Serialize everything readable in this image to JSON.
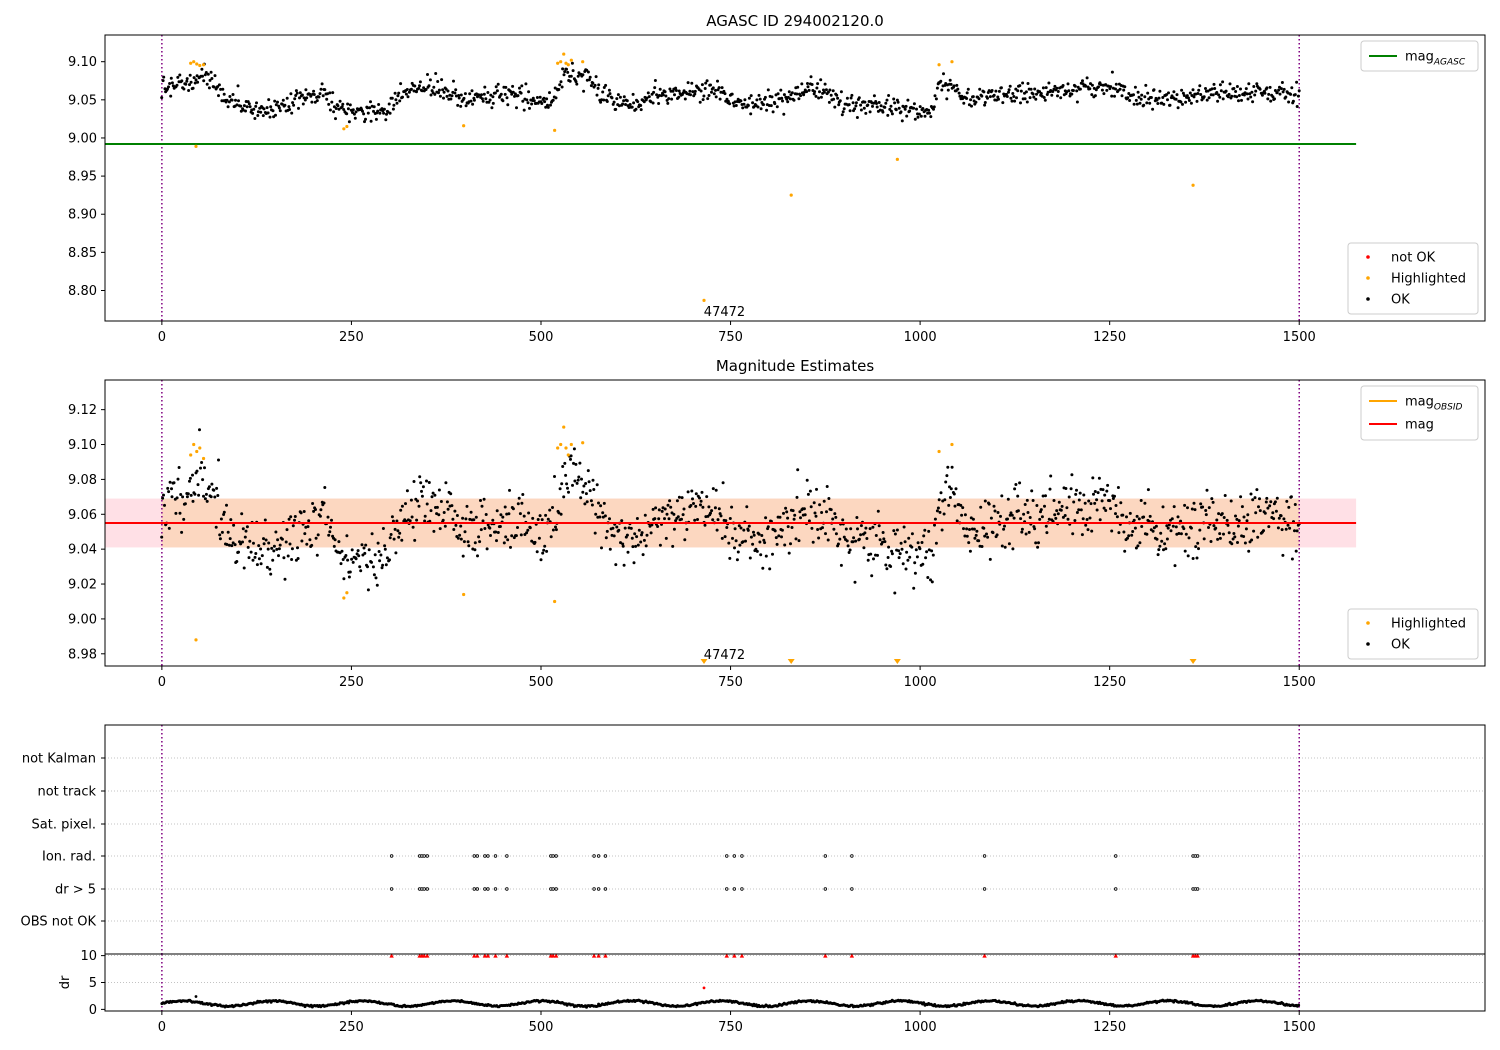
{
  "chart_data": [
    {
      "type": "scatter",
      "title": "AGASC ID 294002120.0",
      "xlabel": "",
      "ylabel": "",
      "xlim": [
        -75,
        1745
      ],
      "ylim": [
        8.76,
        9.135
      ],
      "xticks": [
        0,
        250,
        500,
        750,
        1000,
        1250,
        1500
      ],
      "yticks": [
        8.8,
        8.85,
        8.9,
        8.95,
        9.0,
        9.05,
        9.1
      ],
      "vlines": [
        0,
        1500
      ],
      "hline": {
        "name": "mag_AGASC",
        "value": 8.992,
        "x_range": [
          -75,
          1575
        ],
        "color": "#008000"
      },
      "legend_lines": [
        {
          "name": "mag",
          "sub": "AGASC",
          "color": "#008000"
        }
      ],
      "legend_points": [
        {
          "name": "not OK",
          "color": "#ff0000"
        },
        {
          "name": "Highlighted",
          "color": "#ffa500"
        },
        {
          "name": "OK",
          "color": "#000000"
        }
      ],
      "annotations": [
        {
          "text": "47472",
          "x": 720,
          "y": 8.772
        }
      ],
      "series": [
        {
          "name": "OK",
          "color": "#000000",
          "trend": [
            [
              0,
              9.065
            ],
            [
              30,
              9.072
            ],
            [
              55,
              9.08
            ],
            [
              70,
              9.072
            ],
            [
              85,
              9.05
            ],
            [
              110,
              9.04
            ],
            [
              140,
              9.038
            ],
            [
              165,
              9.045
            ],
            [
              190,
              9.05
            ],
            [
              215,
              9.06
            ],
            [
              235,
              9.035
            ],
            [
              260,
              9.035
            ],
            [
              295,
              9.035
            ],
            [
              305,
              9.05
            ],
            [
              340,
              9.068
            ],
            [
              375,
              9.062
            ],
            [
              395,
              9.05
            ],
            [
              430,
              9.055
            ],
            [
              470,
              9.055
            ],
            [
              505,
              9.045
            ],
            [
              520,
              9.06
            ],
            [
              535,
              9.085
            ],
            [
              560,
              9.08
            ],
            [
              590,
              9.05
            ],
            [
              620,
              9.045
            ],
            [
              660,
              9.058
            ],
            [
              700,
              9.065
            ],
            [
              740,
              9.06
            ],
            [
              760,
              9.045
            ],
            [
              790,
              9.045
            ],
            [
              820,
              9.05
            ],
            [
              850,
              9.065
            ],
            [
              875,
              9.06
            ],
            [
              900,
              9.045
            ],
            [
              930,
              9.045
            ],
            [
              960,
              9.04
            ],
            [
              990,
              9.035
            ],
            [
              1015,
              9.035
            ],
            [
              1025,
              9.07
            ],
            [
              1045,
              9.07
            ],
            [
              1060,
              9.05
            ],
            [
              1100,
              9.055
            ],
            [
              1150,
              9.06
            ],
            [
              1200,
              9.065
            ],
            [
              1250,
              9.068
            ],
            [
              1280,
              9.055
            ],
            [
              1320,
              9.05
            ],
            [
              1360,
              9.055
            ],
            [
              1400,
              9.058
            ],
            [
              1450,
              9.06
            ],
            [
              1500,
              9.055
            ]
          ],
          "noise": 0.0065,
          "step": 1.25,
          "seed": 7
        },
        {
          "name": "Highlighted",
          "color": "#ffa500",
          "points": [
            [
              38,
              9.098
            ],
            [
              42,
              9.1
            ],
            [
              46,
              9.097
            ],
            [
              50,
              9.095
            ],
            [
              55,
              9.096
            ],
            [
              45,
              8.989
            ],
            [
              240,
              9.012
            ],
            [
              244,
              9.015
            ],
            [
              398,
              9.016
            ],
            [
              518,
              9.01
            ],
            [
              522,
              9.098
            ],
            [
              526,
              9.1
            ],
            [
              530,
              9.11
            ],
            [
              533,
              9.098
            ],
            [
              536,
              9.096
            ],
            [
              540,
              9.102
            ],
            [
              555,
              9.1
            ],
            [
              715,
              8.787
            ],
            [
              830,
              8.925
            ],
            [
              970,
              8.972
            ],
            [
              1025,
              9.096
            ],
            [
              1042,
              9.1
            ],
            [
              1360,
              8.938
            ]
          ]
        }
      ]
    },
    {
      "type": "scatter",
      "title": "Magnitude Estimates",
      "xlabel": "",
      "ylabel": "",
      "xlim": [
        -75,
        1745
      ],
      "ylim": [
        8.973,
        9.137
      ],
      "xticks": [
        0,
        250,
        500,
        750,
        1000,
        1250,
        1500
      ],
      "yticks": [
        8.98,
        9.0,
        9.02,
        9.04,
        9.06,
        9.08,
        9.1,
        9.12
      ],
      "vlines": [
        0,
        1500
      ],
      "band_outer": {
        "y": [
          9.041,
          9.069
        ],
        "x_range": [
          -75,
          1575
        ],
        "color": "#ffe0e6"
      },
      "band_inner": {
        "y": [
          9.041,
          9.069
        ],
        "x_range": [
          0,
          1500
        ],
        "color": "#fcd7c0"
      },
      "mag_line": {
        "name": "mag",
        "value": 9.055,
        "x_range": [
          -75,
          1575
        ],
        "color": "#ff0000"
      },
      "obsid_line": {
        "name": "mag_OBSID",
        "value": 9.055,
        "x_range": [
          0,
          1500
        ],
        "color": "#ffa500"
      },
      "legend_lines": [
        {
          "name": "mag",
          "sub": "OBSID",
          "color": "#ffa500"
        },
        {
          "name": "mag",
          "sub": "",
          "color": "#ff0000"
        }
      ],
      "legend_points": [
        {
          "name": "Highlighted",
          "color": "#ffa500"
        },
        {
          "name": "OK",
          "color": "#000000"
        }
      ],
      "annotations": [
        {
          "text": "47472",
          "x": 720,
          "y": 8.976
        }
      ],
      "offscale_markers": [
        715,
        830,
        970,
        1360
      ],
      "series": [
        {
          "name": "OK",
          "color": "#000000",
          "trend": [
            [
              0,
              9.065
            ],
            [
              30,
              9.072
            ],
            [
              55,
              9.08
            ],
            [
              70,
              9.072
            ],
            [
              85,
              9.05
            ],
            [
              110,
              9.04
            ],
            [
              140,
              9.038
            ],
            [
              165,
              9.045
            ],
            [
              190,
              9.05
            ],
            [
              215,
              9.06
            ],
            [
              235,
              9.035
            ],
            [
              260,
              9.035
            ],
            [
              295,
              9.035
            ],
            [
              305,
              9.05
            ],
            [
              340,
              9.068
            ],
            [
              375,
              9.062
            ],
            [
              395,
              9.05
            ],
            [
              430,
              9.055
            ],
            [
              470,
              9.055
            ],
            [
              505,
              9.045
            ],
            [
              520,
              9.06
            ],
            [
              535,
              9.085
            ],
            [
              560,
              9.08
            ],
            [
              590,
              9.05
            ],
            [
              620,
              9.045
            ],
            [
              660,
              9.058
            ],
            [
              700,
              9.065
            ],
            [
              740,
              9.06
            ],
            [
              760,
              9.045
            ],
            [
              790,
              9.045
            ],
            [
              820,
              9.05
            ],
            [
              850,
              9.065
            ],
            [
              875,
              9.06
            ],
            [
              900,
              9.045
            ],
            [
              930,
              9.045
            ],
            [
              960,
              9.04
            ],
            [
              990,
              9.035
            ],
            [
              1015,
              9.035
            ],
            [
              1025,
              9.07
            ],
            [
              1045,
              9.07
            ],
            [
              1060,
              9.05
            ],
            [
              1100,
              9.055
            ],
            [
              1150,
              9.06
            ],
            [
              1200,
              9.065
            ],
            [
              1250,
              9.068
            ],
            [
              1280,
              9.055
            ],
            [
              1320,
              9.05
            ],
            [
              1360,
              9.055
            ],
            [
              1400,
              9.058
            ],
            [
              1450,
              9.06
            ],
            [
              1500,
              9.055
            ]
          ],
          "noise": 0.0085,
          "step": 1.25,
          "seed": 11
        },
        {
          "name": "Highlighted",
          "color": "#ffa500",
          "points": [
            [
              38,
              9.094
            ],
            [
              42,
              9.1
            ],
            [
              46,
              9.096
            ],
            [
              50,
              9.098
            ],
            [
              55,
              9.092
            ],
            [
              45,
              8.988
            ],
            [
              240,
              9.012
            ],
            [
              244,
              9.015
            ],
            [
              398,
              9.014
            ],
            [
              518,
              9.01
            ],
            [
              522,
              9.098
            ],
            [
              526,
              9.1
            ],
            [
              530,
              9.11
            ],
            [
              533,
              9.098
            ],
            [
              536,
              9.094
            ],
            [
              540,
              9.1
            ],
            [
              555,
              9.101
            ],
            [
              1025,
              9.096
            ],
            [
              1042,
              9.1
            ]
          ]
        }
      ]
    },
    {
      "type": "scatter",
      "title": "",
      "xlabel": "",
      "ylabel": "",
      "xlim": [
        -75,
        1745
      ],
      "xticks": [
        0,
        250,
        500,
        750,
        1000,
        1250,
        1500
      ],
      "vlines": [
        0,
        1500
      ],
      "flag_rows": [
        "not Kalman",
        "not track",
        "Sat. pixel.",
        "Ion. rad.",
        "dr > 5",
        "OBS not OK"
      ],
      "flag_points": {
        "Ion. rad.": [
          303,
          340,
          343,
          346,
          350,
          412,
          416,
          426,
          430,
          440,
          455,
          513,
          516,
          520,
          570,
          576,
          585,
          745,
          755,
          765,
          875,
          910,
          1085,
          1258,
          1360,
          1363,
          1366
        ],
        "dr > 5": [
          303,
          340,
          343,
          346,
          350,
          412,
          416,
          426,
          430,
          440,
          455,
          513,
          516,
          520,
          570,
          576,
          585,
          745,
          755,
          765,
          875,
          910,
          1085,
          1258,
          1360,
          1363,
          1366
        ]
      }
    },
    {
      "type": "scatter",
      "title": "",
      "xlabel": "",
      "ylabel": "dr",
      "xlim": [
        -75,
        1745
      ],
      "ylim": [
        -0.3,
        10.3
      ],
      "xticks": [
        0,
        250,
        500,
        750,
        1000,
        1250,
        1500
      ],
      "yticks": [
        0,
        5,
        10
      ],
      "vlines": [
        0,
        1500
      ],
      "capped_points": {
        "value": 10,
        "color": "#ff0000",
        "x": [
          303,
          340,
          343,
          346,
          350,
          412,
          416,
          426,
          430,
          440,
          455,
          513,
          516,
          520,
          570,
          576,
          585,
          745,
          755,
          765,
          875,
          910,
          1085,
          1258,
          1360,
          1363,
          1366
        ]
      },
      "extra_points": [
        {
          "x": 715,
          "y": 4.0,
          "color": "#ff0000"
        },
        {
          "x": 45,
          "y": 2.4,
          "color": "#000000"
        }
      ],
      "series": [
        {
          "name": "dr",
          "color": "#000000",
          "mean": 1.1,
          "amplitude": 0.5,
          "period": 118,
          "noise": 0.22,
          "step": 1.6,
          "seed": 5
        }
      ]
    }
  ]
}
